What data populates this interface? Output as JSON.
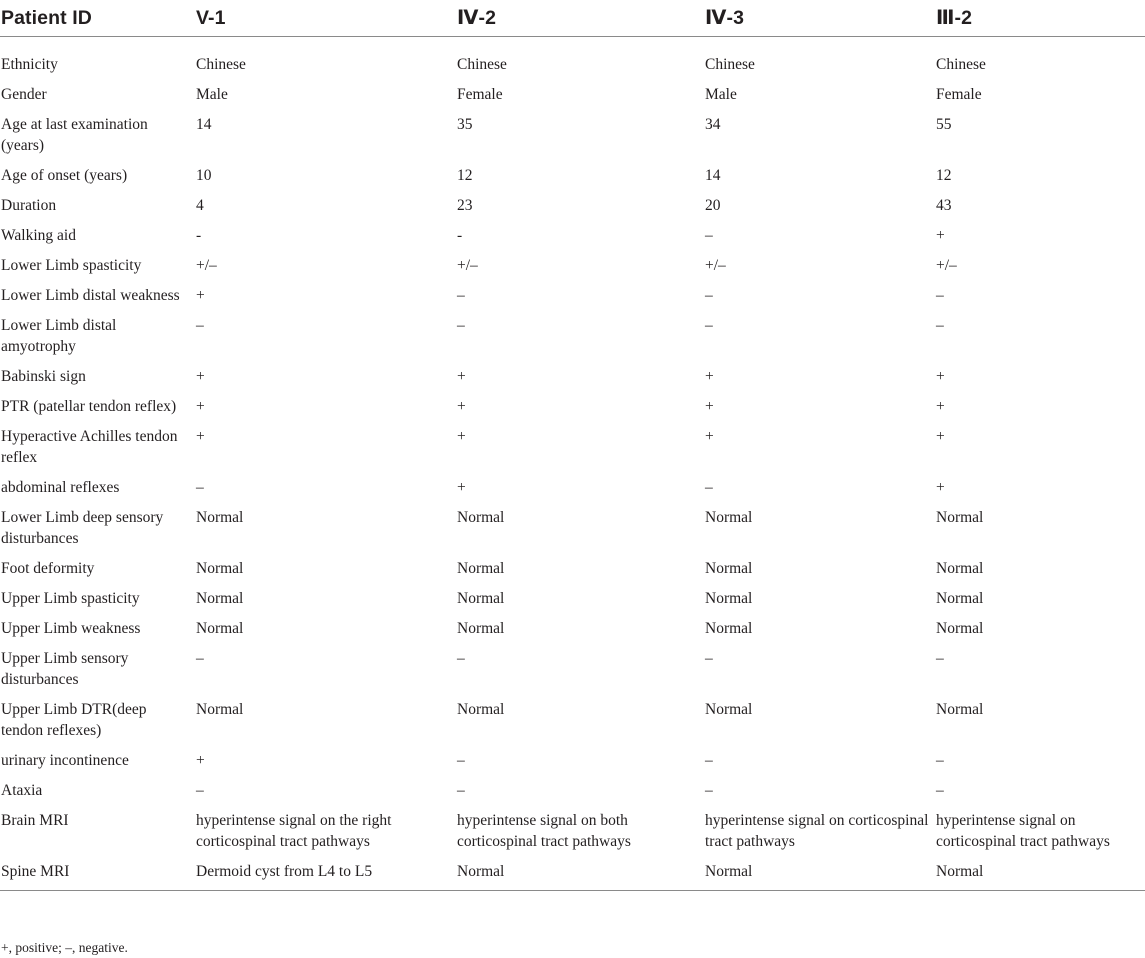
{
  "table": {
    "headers": [
      "Patient ID",
      "V-1",
      "Ⅳ-2",
      "Ⅳ-3",
      "Ⅲ-2"
    ],
    "rows": [
      [
        "Ethnicity",
        "Chinese",
        "Chinese",
        "Chinese",
        "Chinese"
      ],
      [
        "Gender",
        "Male",
        "Female",
        "Male",
        "Female"
      ],
      [
        "Age at last examination (years)",
        "14",
        "35",
        "34",
        "55"
      ],
      [
        "Age of onset (years)",
        "10",
        "12",
        "14",
        "12"
      ],
      [
        "Duration",
        "4",
        "23",
        "20",
        "43"
      ],
      [
        "Walking aid",
        "-",
        "-",
        "–",
        "+"
      ],
      [
        "Lower Limb spasticity",
        "+/–",
        "+/–",
        "+/–",
        "+/–"
      ],
      [
        "Lower Limb distal weakness",
        "+",
        "–",
        "–",
        "–"
      ],
      [
        "Lower Limb distal amyotrophy",
        "–",
        "–",
        "–",
        "–"
      ],
      [
        "Babinski sign",
        "+",
        "+",
        "+",
        "+"
      ],
      [
        "PTR (patellar tendon reflex)",
        "+",
        "+",
        "+",
        "+"
      ],
      [
        "Hyperactive Achilles tendon reflex",
        "+",
        "+",
        "+",
        "+"
      ],
      [
        "abdominal reflexes",
        "–",
        "+",
        "–",
        "+"
      ],
      [
        "Lower Limb deep sensory disturbances",
        "Normal",
        "Normal",
        "Normal",
        "Normal"
      ],
      [
        "Foot deformity",
        "Normal",
        "Normal",
        "Normal",
        "Normal"
      ],
      [
        "Upper Limb spasticity",
        "Normal",
        "Normal",
        "Normal",
        "Normal"
      ],
      [
        "Upper Limb weakness",
        "Normal",
        "Normal",
        "Normal",
        "Normal"
      ],
      [
        "Upper Limb sensory disturbances",
        "–",
        "–",
        "–",
        "–"
      ],
      [
        "Upper Limb DTR(deep tendon reflexes)",
        "Normal",
        "Normal",
        "Normal",
        "Normal"
      ],
      [
        "urinary incontinence",
        "+",
        "–",
        "–",
        "–"
      ],
      [
        "Ataxia",
        "–",
        "–",
        "–",
        "–"
      ],
      [
        "Brain MRI",
        "hyperintense signal on the right corticospinal tract pathways",
        "hyperintense signal on both corticospinal tract pathways",
        "hyperintense signal on corticospinal tract pathways",
        "hyperintense signal on corticospinal tract pathways"
      ],
      [
        "Spine MRI",
        "Dermoid cyst from L4 to L5",
        "Normal",
        "Normal",
        "Normal"
      ]
    ]
  },
  "footnote": "+, positive; –, negative."
}
